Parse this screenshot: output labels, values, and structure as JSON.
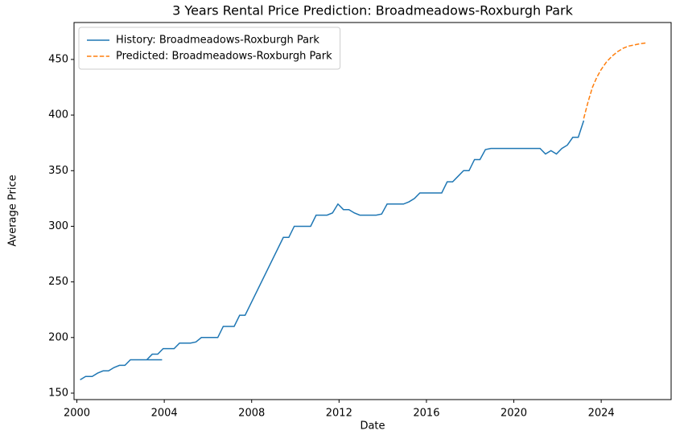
{
  "chart_data": {
    "type": "line",
    "title": "3 Years Rental Price Prediction: Broadmeadows-Roxburgh Park",
    "x_label": "Date",
    "y_label": "Average Price",
    "xlim": [
      1999.87,
      2027.2
    ],
    "ylim": [
      144.2,
      483.2
    ],
    "xticks": [
      2000,
      2004,
      2008,
      2012,
      2016,
      2020,
      2024
    ],
    "yticks": [
      150,
      200,
      250,
      300,
      350,
      400,
      450
    ],
    "grid": false,
    "legend": "upper left",
    "series": [
      {
        "name": "History: Broadmeadows-Roxburgh Park",
        "color": "#1f77b4",
        "linestyle": "solid",
        "x": [
          2000.15,
          2000.4,
          2000.7,
          2000.95,
          2001.2,
          2001.45,
          2001.7,
          2001.95,
          2002.2,
          2002.45,
          2002.7,
          2002.95,
          2003.2,
          2003.45,
          2003.7,
          2003.9,
          2003.2,
          2003.45,
          2003.7,
          2003.95,
          2004.2,
          2004.45,
          2004.7,
          2004.95,
          2005.2,
          2005.45,
          2005.7,
          2005.95,
          2006.2,
          2006.45,
          2006.7,
          2006.95,
          2007.2,
          2007.45,
          2007.7,
          2009.45,
          2009.7,
          2009.95,
          2010.2,
          2010.45,
          2010.7,
          2010.95,
          2011.2,
          2011.45,
          2011.7,
          2011.95,
          2012.2,
          2012.45,
          2012.7,
          2012.95,
          2013.2,
          2013.45,
          2013.7,
          2013.95,
          2014.2,
          2014.45,
          2014.7,
          2014.95,
          2015.2,
          2015.45,
          2015.7,
          2015.95,
          2016.2,
          2016.45,
          2016.7,
          2016.95,
          2017.2,
          2017.45,
          2017.7,
          2017.95,
          2018.2,
          2018.45,
          2018.7,
          2018.95,
          2019.2,
          2019.45,
          2019.7,
          2019.95,
          2020.2,
          2020.45,
          2020.7,
          2020.95,
          2021.2,
          2021.45,
          2021.7,
          2021.95,
          2022.2,
          2022.45,
          2022.7,
          2022.95,
          2023.2
        ],
        "values": [
          162,
          165,
          165,
          168,
          170,
          170,
          173,
          175,
          175,
          180,
          180,
          180,
          180,
          180,
          180,
          180,
          180,
          185,
          185,
          190,
          190,
          190,
          195,
          195,
          195,
          196,
          200,
          200,
          200,
          200,
          210,
          210,
          210,
          220,
          220,
          290,
          290,
          300,
          300,
          300,
          300,
          310,
          310,
          310,
          312,
          320,
          315,
          315,
          312,
          310,
          310,
          310,
          310,
          311,
          320,
          320,
          320,
          320,
          322,
          325,
          330,
          330,
          330,
          330,
          330,
          340,
          340,
          345,
          350,
          350,
          360,
          360,
          369,
          370,
          370,
          370,
          370,
          370,
          370,
          370,
          370,
          370,
          370,
          365,
          368,
          365,
          370,
          373,
          380,
          380,
          395
        ]
      },
      {
        "name": "Predicted: Broadmeadows-Roxburgh Park",
        "color": "#ff7f0e",
        "linestyle": "dashed",
        "x": [
          2023.2,
          2023.4,
          2023.6,
          2023.8,
          2024.0,
          2024.25,
          2024.5,
          2024.75,
          2025.0,
          2025.25,
          2025.5,
          2025.75,
          2026.1
        ],
        "values": [
          397,
          412,
          425,
          434,
          441,
          448,
          453,
          457,
          460,
          462,
          463,
          464,
          465
        ]
      }
    ]
  }
}
